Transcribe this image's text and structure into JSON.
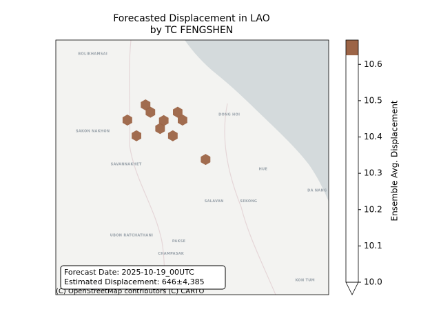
{
  "chart_data": {
    "type": "hexbin_map",
    "title_lines": [
      "Forecasted Displacement in LAO",
      "by TC FENGSHEN"
    ],
    "xlim": [
      104.0,
      108.5
    ],
    "ylim": [
      14.3,
      18.5
    ],
    "lon": [
      105.48,
      105.56,
      105.18,
      105.78,
      106.01,
      106.09,
      105.72,
      105.33,
      105.93,
      106.47
    ],
    "lat": [
      17.43,
      17.31,
      17.18,
      17.17,
      17.31,
      17.18,
      17.04,
      16.92,
      16.92,
      16.53
    ],
    "values": [
      10.65,
      10.65,
      10.65,
      10.65,
      10.65,
      10.65,
      10.65,
      10.65,
      10.65,
      10.65
    ],
    "colorbar": {
      "label": "Ensemble Avg. Displacement",
      "clim": [
        10.0,
        10.667
      ],
      "ticks": [
        {
          "value": 10.0,
          "label": "10.0"
        },
        10.1,
        10.2,
        10.3,
        10.4,
        10.5,
        10.6
      ],
      "color_stops": [
        {
          "value": 10.0,
          "color": "#ffffff"
        },
        {
          "value": 10.625,
          "color": "#9c6446"
        }
      ]
    },
    "annotation": [
      "Forecast Date: 2025-10-19_00UTC",
      "Estimated Displacement: 646±4,385"
    ],
    "attribution": "(C) OpenStreetMap contributors (C) CARTO",
    "map_labels": [
      {
        "text": "BOLIKHAMSAI",
        "lon": 104.61,
        "lat": 18.27
      },
      {
        "text": "SAKON NAKHON",
        "lon": 104.61,
        "lat": 17.0
      },
      {
        "text": "SAVANNAKHET",
        "lon": 105.16,
        "lat": 16.45
      },
      {
        "text": "SALAVAN",
        "lon": 106.61,
        "lat": 15.84
      },
      {
        "text": "SEKONG",
        "lon": 107.18,
        "lat": 15.84
      },
      {
        "text": "UBON RATCHATHANI",
        "lon": 105.25,
        "lat": 15.28
      },
      {
        "text": "PAKSE",
        "lon": 106.03,
        "lat": 15.18
      },
      {
        "text": "CHAMPASAK",
        "lon": 105.9,
        "lat": 14.98
      },
      {
        "text": "DONG HOI",
        "lon": 106.86,
        "lat": 17.27
      },
      {
        "text": "HUE",
        "lon": 107.42,
        "lat": 16.37
      },
      {
        "text": "DA NANG",
        "lon": 108.31,
        "lat": 16.02
      },
      {
        "text": "KON TUM",
        "lon": 108.11,
        "lat": 14.54
      }
    ]
  }
}
